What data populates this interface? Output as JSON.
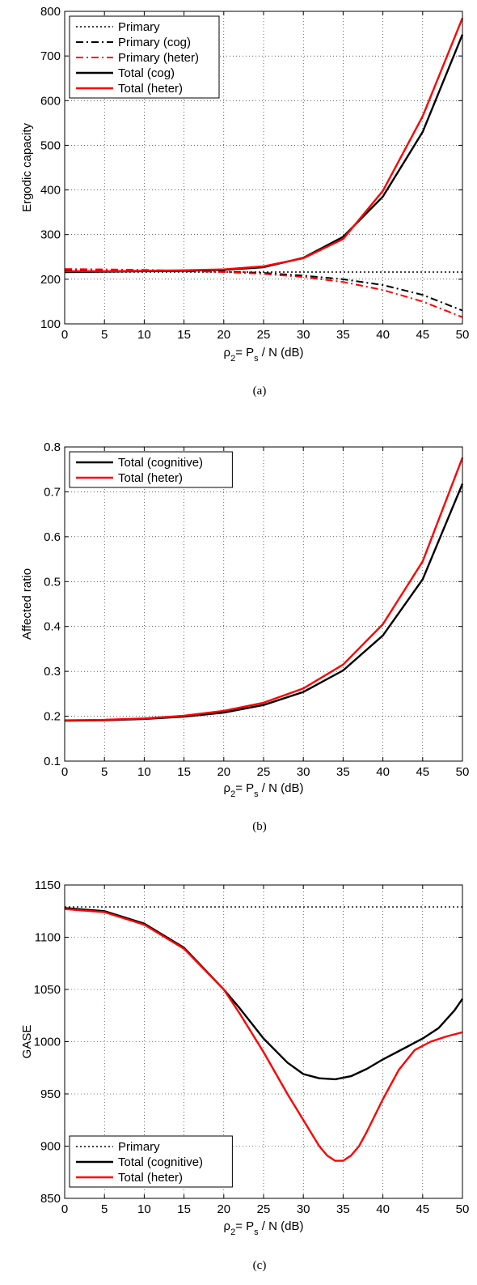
{
  "chart_data": [
    {
      "id": "a",
      "type": "line",
      "caption": "(a)",
      "xlabel": {
        "pre": "ρ",
        "sub1": "2",
        "mid": "= P",
        "sub2": "s",
        "post": " / N (dB)"
      },
      "ylabel": "Ergodic capacity",
      "xlim": [
        0,
        50
      ],
      "ylim": [
        100,
        800
      ],
      "xticks": [
        0,
        5,
        10,
        15,
        20,
        25,
        30,
        35,
        40,
        45,
        50
      ],
      "yticks": [
        100,
        200,
        300,
        400,
        500,
        600,
        700,
        800
      ],
      "grid": true,
      "legend_position": "top-left",
      "series": [
        {
          "name": "Primary",
          "color": "#000000",
          "style": "dotted",
          "x": [
            0,
            50
          ],
          "y": [
            216,
            216
          ]
        },
        {
          "name": "Primary (cog)",
          "color": "#000000",
          "style": "dashdot",
          "x": [
            0,
            5,
            10,
            15,
            20,
            25,
            30,
            35,
            40,
            45,
            50
          ],
          "y": [
            220,
            220,
            219,
            218,
            217,
            214,
            208,
            200,
            187,
            165,
            130
          ]
        },
        {
          "name": "Primary (heter)",
          "color": "#ff0000",
          "style": "dashdot",
          "x": [
            0,
            5,
            10,
            15,
            20,
            25,
            30,
            35,
            40,
            45,
            50
          ],
          "y": [
            223,
            222,
            221,
            219,
            216,
            212,
            205,
            194,
            176,
            150,
            115
          ]
        },
        {
          "name": "Total (cog)",
          "color": "#000000",
          "style": "solid",
          "x": [
            0,
            5,
            10,
            15,
            20,
            25,
            30,
            35,
            40,
            45,
            50
          ],
          "y": [
            216,
            217,
            218,
            219,
            221,
            227,
            248,
            295,
            385,
            530,
            748
          ]
        },
        {
          "name": "Total (heter)",
          "color": "#ff0000",
          "style": "solid",
          "x": [
            0,
            5,
            10,
            15,
            20,
            25,
            30,
            35,
            40,
            45,
            50
          ],
          "y": [
            218,
            218,
            219,
            220,
            222,
            229,
            247,
            290,
            398,
            565,
            785
          ]
        }
      ]
    },
    {
      "id": "b",
      "type": "line",
      "caption": "(b)",
      "xlabel": {
        "pre": "ρ",
        "sub1": "2",
        "mid": "= P",
        "sub2": "s",
        "post": " / N (dB)"
      },
      "ylabel": "Affected ratio",
      "xlim": [
        0,
        50
      ],
      "ylim": [
        0.1,
        0.8
      ],
      "xticks": [
        0,
        5,
        10,
        15,
        20,
        25,
        30,
        35,
        40,
        45,
        50
      ],
      "yticks": [
        0.1,
        0.2,
        0.3,
        0.4,
        0.5,
        0.6,
        0.7,
        0.8
      ],
      "grid": true,
      "legend_position": "top-left",
      "series": [
        {
          "name": "Total (cognitive)",
          "color": "#000000",
          "style": "solid",
          "x": [
            0,
            5,
            10,
            15,
            20,
            25,
            30,
            35,
            40,
            45,
            50
          ],
          "y": [
            0.19,
            0.191,
            0.194,
            0.199,
            0.208,
            0.225,
            0.254,
            0.302,
            0.38,
            0.505,
            0.718
          ]
        },
        {
          "name": "Total (heter)",
          "color": "#ff0000",
          "style": "solid",
          "x": [
            0,
            5,
            10,
            15,
            20,
            25,
            30,
            35,
            40,
            45,
            50
          ],
          "y": [
            0.191,
            0.192,
            0.195,
            0.201,
            0.212,
            0.23,
            0.262,
            0.315,
            0.405,
            0.545,
            0.776
          ]
        }
      ]
    },
    {
      "id": "c",
      "type": "line",
      "caption": "(c)",
      "xlabel": {
        "pre": "ρ",
        "sub1": "2",
        "mid": "= P",
        "sub2": "s",
        "post": " / N (dB)"
      },
      "ylabel": "GASE",
      "xlim": [
        0,
        50
      ],
      "ylim": [
        850,
        1150
      ],
      "xticks": [
        0,
        5,
        10,
        15,
        20,
        25,
        30,
        35,
        40,
        45,
        50
      ],
      "yticks": [
        850,
        900,
        950,
        1000,
        1050,
        1100,
        1150
      ],
      "grid": true,
      "legend_position": "bottom-left",
      "series": [
        {
          "name": "Primary",
          "color": "#000000",
          "style": "dotted",
          "x": [
            0,
            50
          ],
          "y": [
            1129,
            1129
          ]
        },
        {
          "name": "Total (cognitive)",
          "color": "#000000",
          "style": "solid",
          "x": [
            0,
            5,
            10,
            15,
            20,
            22,
            25,
            28,
            30,
            32,
            34,
            36,
            38,
            40,
            43,
            45,
            47,
            49,
            50
          ],
          "y": [
            1128,
            1125,
            1113,
            1090,
            1050,
            1032,
            1003,
            980,
            969,
            965,
            964,
            967,
            974,
            983,
            995,
            1003,
            1013,
            1030,
            1041
          ]
        },
        {
          "name": "Total (heter)",
          "color": "#ff0000",
          "style": "solid",
          "x": [
            0,
            5,
            10,
            15,
            20,
            22,
            25,
            28,
            30,
            32,
            33,
            34,
            35,
            36,
            37,
            38,
            40,
            42,
            44,
            46,
            48,
            50
          ],
          "y": [
            1127,
            1124,
            1112,
            1089,
            1050,
            1027,
            990,
            950,
            925,
            900,
            891,
            886,
            886,
            891,
            900,
            914,
            945,
            973,
            992,
            1000,
            1005,
            1009
          ]
        }
      ]
    }
  ]
}
